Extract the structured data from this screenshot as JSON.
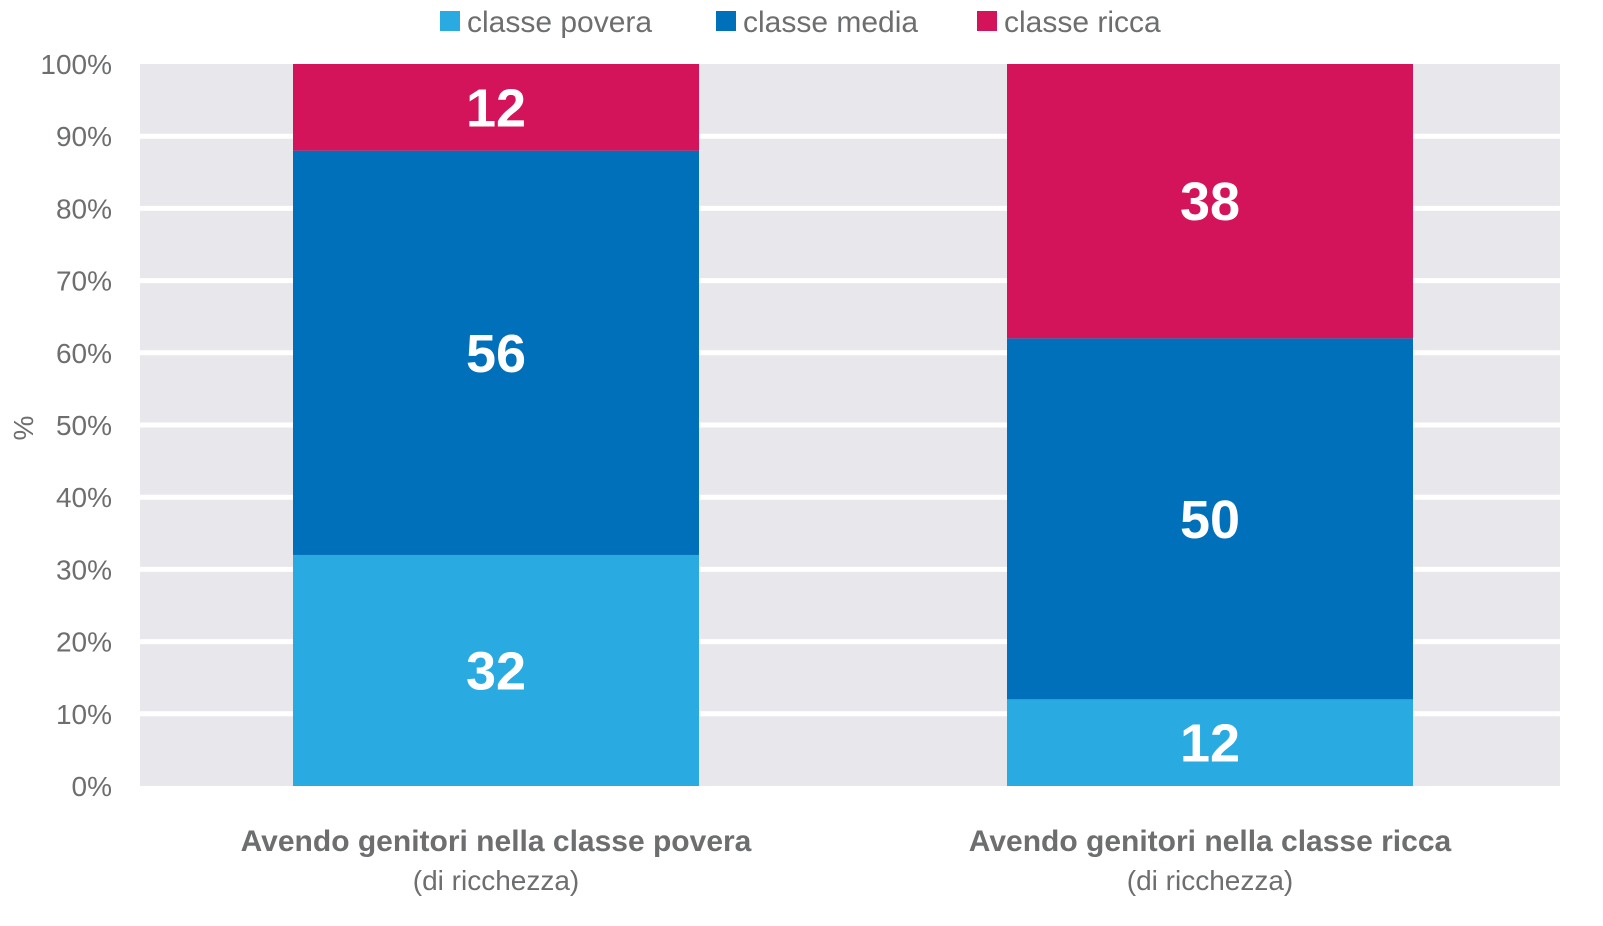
{
  "chart_data": {
    "type": "bar",
    "stacked": true,
    "categories": [
      "Avendo genitori nella classe povera",
      "Avendo genitori nella classe ricca"
    ],
    "category_sublabels": [
      "(di ricchezza)",
      "(di ricchezza)"
    ],
    "series": [
      {
        "name": "classe povera",
        "color": "#29abe2",
        "values": [
          32,
          12
        ]
      },
      {
        "name": "classe media",
        "color": "#0070bb",
        "values": [
          56,
          50
        ]
      },
      {
        "name": "classe ricca",
        "color": "#d4145a",
        "values": [
          12,
          38
        ]
      }
    ],
    "ylabel": "%",
    "ylim": [
      0,
      100
    ],
    "yticks": [
      "0%",
      "10%",
      "20%",
      "30%",
      "40%",
      "50%",
      "60%",
      "70%",
      "80%",
      "90%",
      "100%"
    ],
    "grid": true,
    "legend": "top-center",
    "colors": {
      "plot_background": "#e8e8ec",
      "gridline": "#ffffff",
      "text": "#6d6e70",
      "data_label": "#ffffff"
    }
  }
}
